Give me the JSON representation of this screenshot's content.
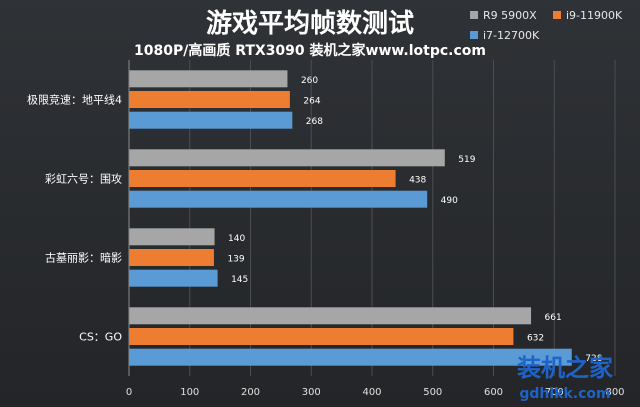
{
  "chart_data": {
    "type": "bar",
    "orientation": "horizontal",
    "title": "游戏平均帧数测试",
    "subtitle": "1080P/高画质 RTX3090 装机之家www.lotpc.com",
    "categories": [
      "极限竞速：地平线4",
      "彩虹六号：围攻",
      "古墓丽影：暗影",
      "CS：GO"
    ],
    "series": [
      {
        "name": "R9 5900X",
        "color": "#a6a6a6",
        "values": [
          260,
          519,
          140,
          661
        ]
      },
      {
        "name": "i9-11900K",
        "color": "#ed7d31",
        "values": [
          264,
          438,
          139,
          632
        ]
      },
      {
        "name": "i7-12700K",
        "color": "#5b9bd5",
        "values": [
          268,
          490,
          145,
          728
        ]
      }
    ],
    "xlim": [
      0,
      800
    ],
    "xticks": [
      0,
      100,
      200,
      300,
      400,
      500,
      600,
      700,
      800
    ],
    "grid": true,
    "legend_position": "top-right"
  },
  "watermark": {
    "line1": "装机之家",
    "line2": "gdhlkk.com",
    "color": "#1e64c8"
  }
}
